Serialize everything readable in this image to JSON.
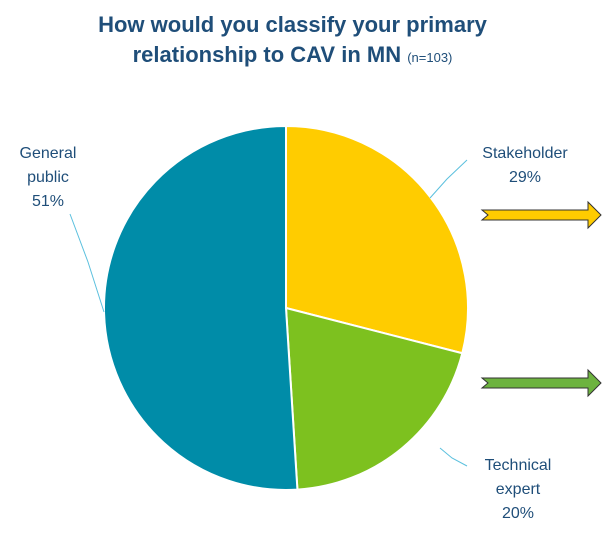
{
  "title": {
    "line1": "How would you classify your primary",
    "line2": "relationship to CAV in MN",
    "n_label": "(n=103)"
  },
  "chart_data": {
    "type": "pie",
    "title": "How would you classify your primary relationship to CAV in MN",
    "subtitle": "(n=103)",
    "start_angle_deg": 0,
    "direction": "clockwise",
    "slices": [
      {
        "label_lines": [
          "Stakeholder"
        ],
        "value": 29,
        "value_label": "29%",
        "color": "#FFCC00"
      },
      {
        "label_lines": [
          "Technical",
          "expert"
        ],
        "value": 20,
        "value_label": "20%",
        "color": "#7DC11F"
      },
      {
        "label_lines": [
          "General",
          "public"
        ],
        "value": 51,
        "value_label": "51%",
        "color": "#008CA8"
      }
    ],
    "legend": "none",
    "arrows": [
      {
        "color": "#FFCC00"
      },
      {
        "color": "#6DB33F"
      }
    ]
  }
}
